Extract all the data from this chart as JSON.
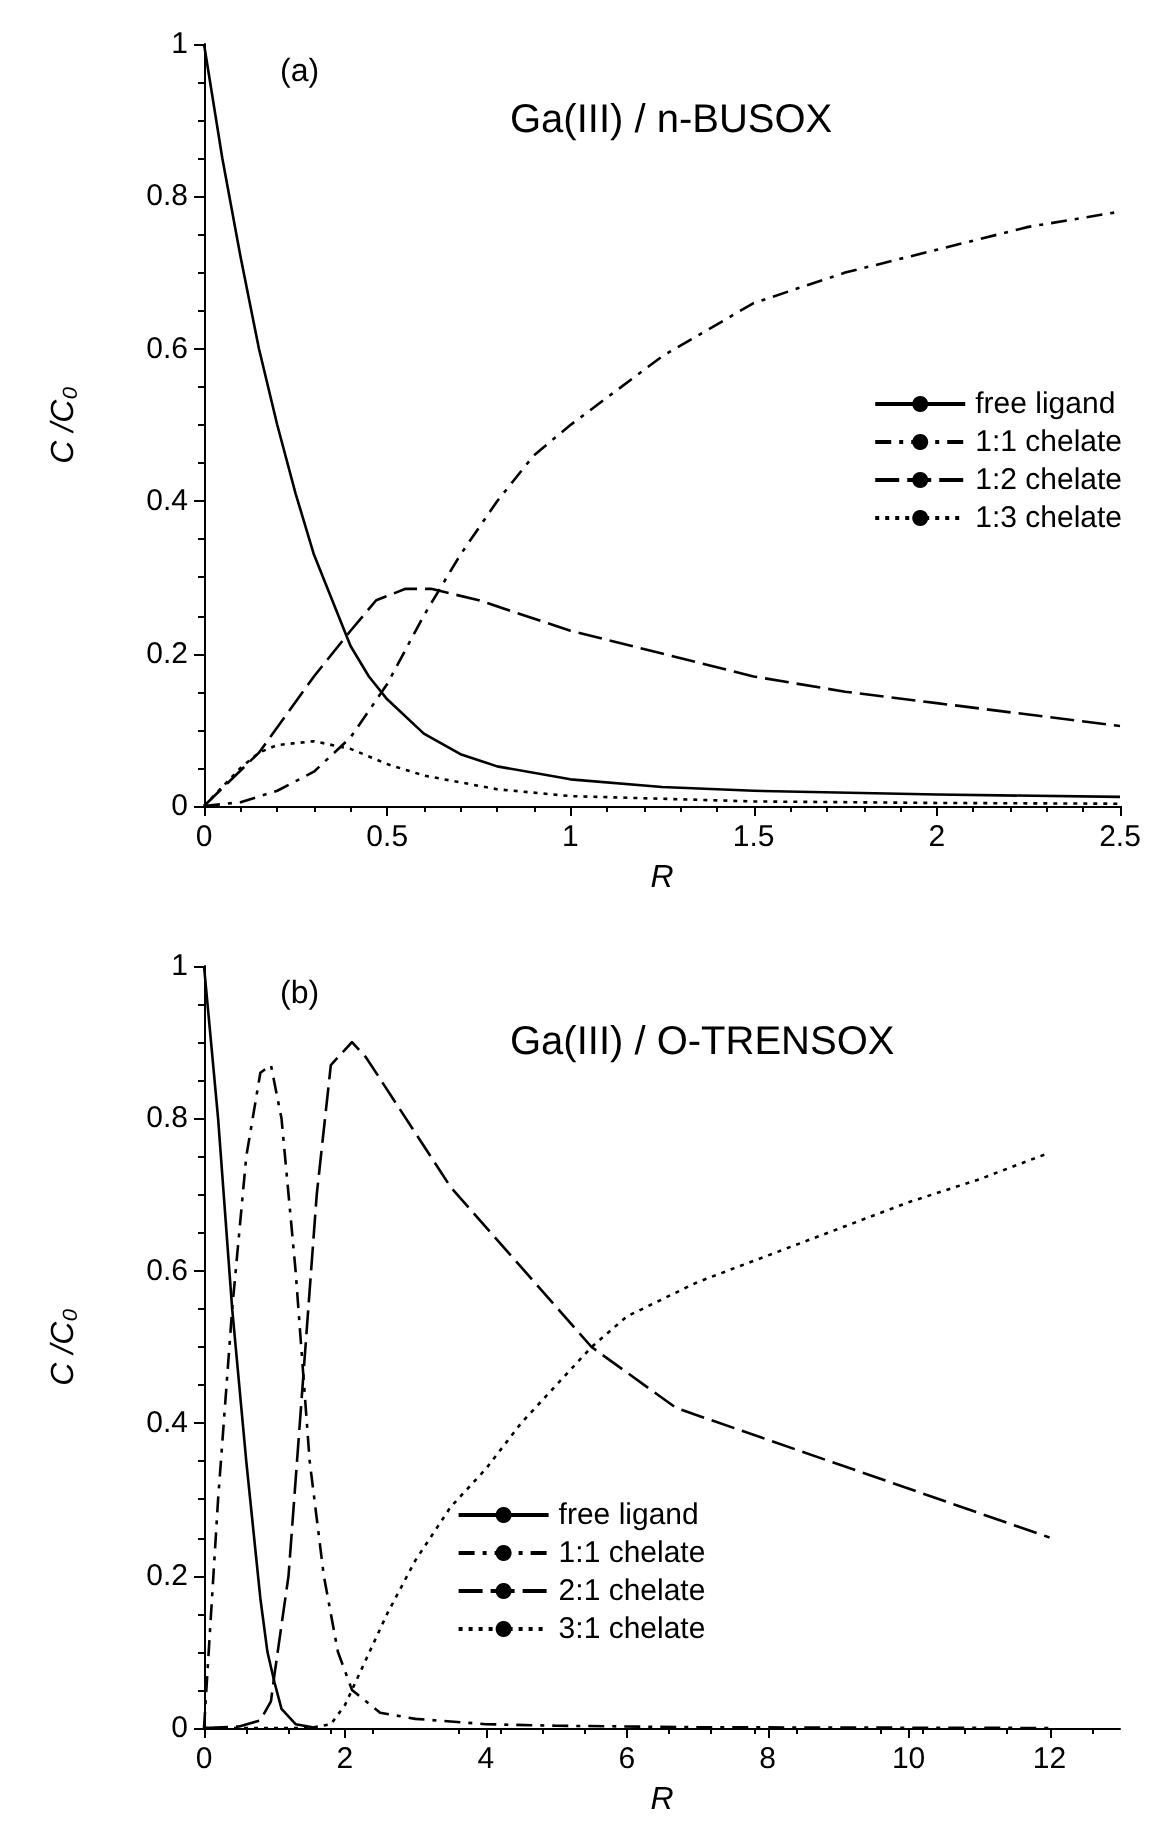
{
  "chart_data": [
    {
      "type": "line",
      "title": "Ga(III) / n-BUSOX",
      "xlabel": "R",
      "ylabel": "C /C₀",
      "annotations": [
        "(a)"
      ],
      "xlim": [
        0,
        2.5
      ],
      "xticks": [
        0,
        0.5,
        1,
        1.5,
        2,
        2.5
      ],
      "ylim": [
        0,
        1
      ],
      "yticks": [
        0,
        0.2,
        0.4,
        0.6,
        0.8,
        1
      ],
      "grid": false,
      "legend": "right",
      "marker": "none",
      "series": [
        {
          "name": "free ligand",
          "color": "#000000",
          "line_style": "solid",
          "x": [
            0,
            0.05,
            0.1,
            0.15,
            0.2,
            0.25,
            0.3,
            0.35,
            0.4,
            0.45,
            0.5,
            0.6,
            0.7,
            0.8,
            1.0,
            1.25,
            1.5,
            2.0,
            2.5
          ],
          "values": [
            1,
            0.85,
            0.72,
            0.6,
            0.5,
            0.41,
            0.33,
            0.27,
            0.21,
            0.17,
            0.14,
            0.095,
            0.068,
            0.052,
            0.035,
            0.025,
            0.02,
            0.015,
            0.012
          ]
        },
        {
          "name": "1:1 chelate",
          "color": "#000000",
          "line_style": "dashdot",
          "x": [
            0,
            0.1,
            0.2,
            0.3,
            0.4,
            0.5,
            0.6,
            0.7,
            0.8,
            0.9,
            1.0,
            1.25,
            1.5,
            1.75,
            2.0,
            2.25,
            2.5
          ],
          "values": [
            0,
            0.005,
            0.02,
            0.045,
            0.09,
            0.16,
            0.25,
            0.33,
            0.4,
            0.46,
            0.5,
            0.59,
            0.66,
            0.7,
            0.73,
            0.76,
            0.78
          ]
        },
        {
          "name": "1:2 chelate",
          "color": "#000000",
          "line_style": "dashed",
          "x": [
            0,
            0.15,
            0.3,
            0.4,
            0.47,
            0.55,
            0.62,
            0.75,
            1.0,
            1.25,
            1.5,
            1.75,
            2.0,
            2.25,
            2.5
          ],
          "values": [
            0,
            0.07,
            0.17,
            0.23,
            0.27,
            0.285,
            0.285,
            0.27,
            0.23,
            0.2,
            0.17,
            0.15,
            0.135,
            0.12,
            0.105
          ]
        },
        {
          "name": "1:3 chelate",
          "color": "#000000",
          "line_style": "dotted",
          "x": [
            0,
            0.1,
            0.15,
            0.2,
            0.3,
            0.4,
            0.5,
            0.6,
            0.8,
            1.0,
            1.5,
            2.0,
            2.5
          ],
          "values": [
            0,
            0.05,
            0.07,
            0.08,
            0.085,
            0.075,
            0.055,
            0.04,
            0.022,
            0.013,
            0.006,
            0.004,
            0.003
          ]
        }
      ]
    },
    {
      "type": "line",
      "title": "Ga(III) / O-TRENSOX",
      "xlabel": "R",
      "ylabel": "C /C₀",
      "annotations": [
        "(b)"
      ],
      "xlim": [
        0,
        13
      ],
      "xticks": [
        0,
        2,
        4,
        6,
        8,
        10,
        12
      ],
      "ylim": [
        0,
        1
      ],
      "yticks": [
        0,
        0.2,
        0.4,
        0.6,
        0.8,
        1
      ],
      "grid": false,
      "legend": "bottom",
      "marker": "none",
      "series": [
        {
          "name": "free ligand",
          "color": "#000000",
          "line_style": "solid",
          "x": [
            0,
            0.2,
            0.4,
            0.6,
            0.8,
            0.9,
            1.0,
            1.1,
            1.3,
            1.6
          ],
          "values": [
            1,
            0.8,
            0.55,
            0.35,
            0.17,
            0.1,
            0.06,
            0.025,
            0.005,
            0
          ]
        },
        {
          "name": "1:1 chelate",
          "color": "#000000",
          "line_style": "dashdot",
          "x": [
            0,
            0.2,
            0.4,
            0.6,
            0.8,
            0.95,
            1.1,
            1.3,
            1.5,
            1.7,
            1.9,
            2.1,
            2.5,
            3,
            4,
            5,
            7,
            12
          ],
          "values": [
            0,
            0.3,
            0.55,
            0.75,
            0.86,
            0.87,
            0.8,
            0.6,
            0.35,
            0.2,
            0.1,
            0.05,
            0.02,
            0.012,
            0.005,
            0.003,
            0.001,
            0
          ]
        },
        {
          "name": "2:1 chelate",
          "color": "#000000",
          "line_style": "dashed",
          "x": [
            0,
            0.5,
            0.8,
            0.95,
            1.0,
            1.2,
            1.4,
            1.6,
            1.8,
            2.1,
            2.3,
            3.5,
            5.5,
            6.7,
            12
          ],
          "values": [
            0,
            0.002,
            0.01,
            0.035,
            0.07,
            0.2,
            0.45,
            0.7,
            0.87,
            0.9,
            0.88,
            0.71,
            0.5,
            0.42,
            0.25
          ]
        },
        {
          "name": "3:1 chelate",
          "color": "#000000",
          "line_style": "dotted",
          "x": [
            0,
            1.5,
            1.8,
            2.0,
            2.2,
            2.6,
            3,
            3.5,
            4,
            4.5,
            5,
            5.5,
            6,
            7,
            8,
            9,
            10,
            11,
            12
          ],
          "values": [
            0,
            0,
            0.005,
            0.03,
            0.07,
            0.15,
            0.22,
            0.29,
            0.34,
            0.4,
            0.45,
            0.5,
            0.54,
            0.585,
            0.62,
            0.655,
            0.69,
            0.72,
            0.755
          ]
        }
      ]
    }
  ]
}
